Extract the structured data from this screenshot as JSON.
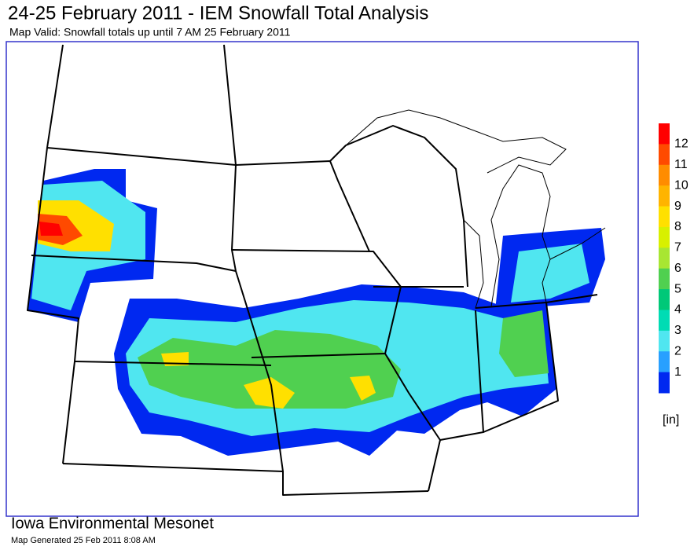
{
  "header": {
    "title": "24-25 February 2011 - IEM Snowfall Total Analysis",
    "subtitle": "Map Valid: Snowfall totals up until 7 AM 25 February 2011"
  },
  "legend": {
    "labels": [
      12,
      11,
      10,
      9,
      8,
      7,
      6,
      5,
      4,
      3,
      2,
      1
    ],
    "colors": [
      "#ff0000",
      "#ff4a00",
      "#ff8c00",
      "#ffb400",
      "#ffe000",
      "#d8f000",
      "#a8e632",
      "#50d050",
      "#00c878",
      "#00dcb4",
      "#50e6f0",
      "#28a0ff",
      "#0028f0"
    ],
    "unit": "[in]"
  },
  "footer": {
    "org": "Iowa Environmental Mesonet",
    "generated": "Map Generated 25 Feb 2011 8:08 AM"
  }
}
